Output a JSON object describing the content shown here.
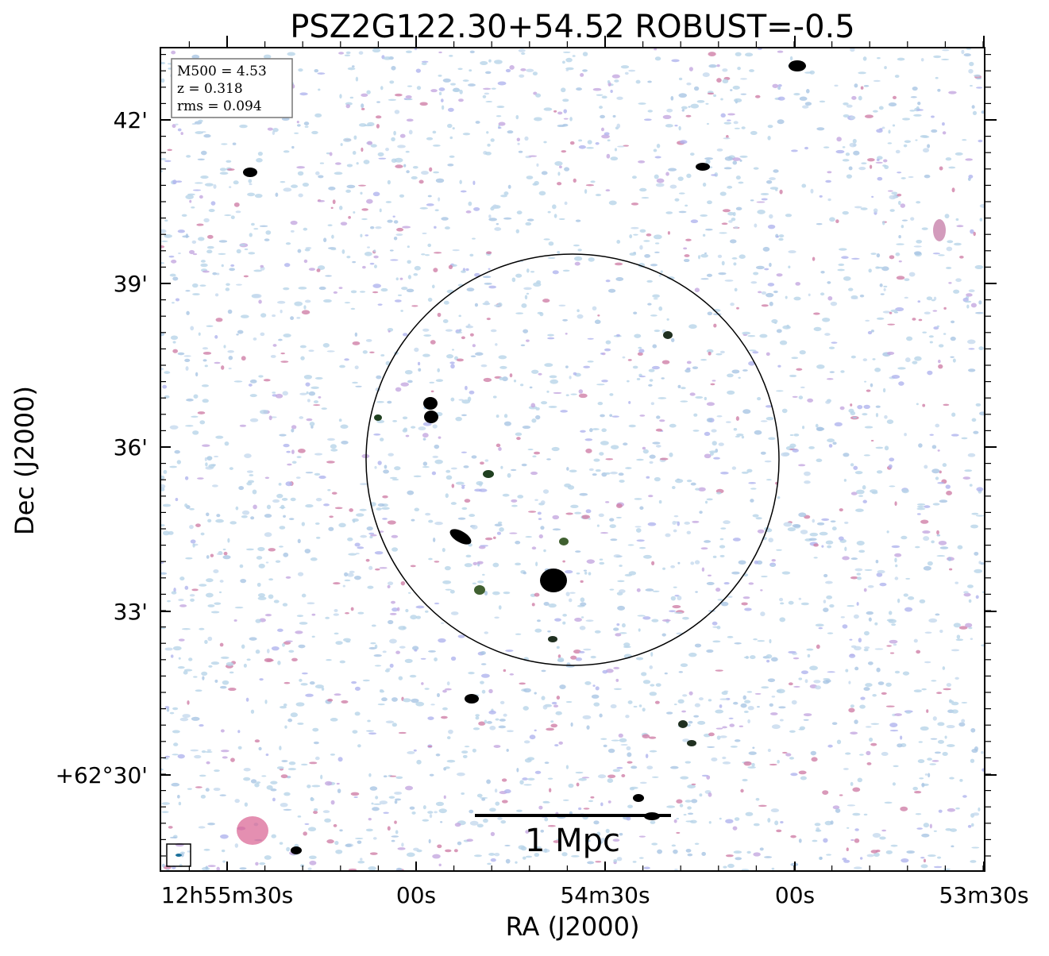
{
  "title": "PSZ2G122.30+54.52 ROBUST=-0.5",
  "x_axis": {
    "label": "RA (J2000)",
    "ticks": [
      "12h55m30s",
      "00s",
      "54m30s",
      "00s",
      "53m30s"
    ]
  },
  "y_axis": {
    "label": "Dec (J2000)",
    "ticks": [
      "42'",
      "39'",
      "36'",
      "33'",
      "+62°30'"
    ]
  },
  "info_box": {
    "lines": [
      "M500 = 4.53",
      "z = 0.318",
      "rms = 0.094"
    ]
  },
  "scale_bar": {
    "label": "1 Mpc"
  }
}
